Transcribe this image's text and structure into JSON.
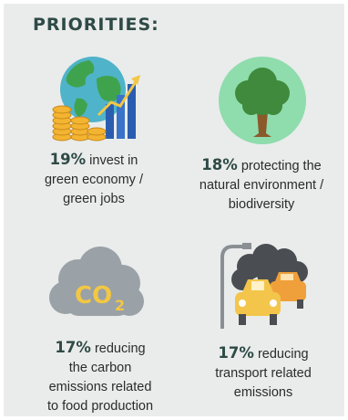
{
  "title": "PRIORITIES:",
  "items": [
    {
      "pct": "19%",
      "line1": "invest in",
      "line2": "green economy /",
      "line3": "green jobs",
      "icon": "globe-growth-icon"
    },
    {
      "pct": "18%",
      "line1": "protecting the",
      "line2": "natural environment /",
      "line3": "biodiversity",
      "icon": "tree-icon"
    },
    {
      "pct": "17%",
      "line1": "reducing",
      "line2": "the carbon",
      "line3": "emissions related",
      "line4": "to food production",
      "icon": "co2-cloud-icon",
      "co2_text": "CO",
      "co2_sub": "2"
    },
    {
      "pct": "17%",
      "line1": "reducing",
      "line2": "transport related",
      "line3": "emissions",
      "icon": "cars-smog-icon"
    }
  ],
  "colors": {
    "title": "#2f4a46",
    "panel": "#e9eceb",
    "text": "#2b2b2b"
  }
}
